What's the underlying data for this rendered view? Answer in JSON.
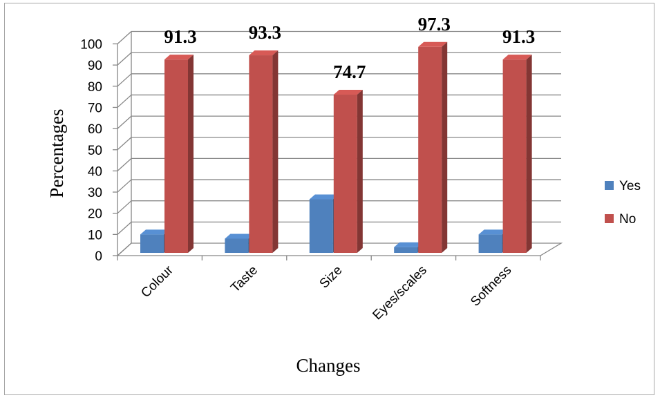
{
  "chart_data": {
    "type": "bar",
    "xlabel": "Changes",
    "ylabel": "Percentages",
    "ylim": [
      0,
      100
    ],
    "yticks": [
      "0",
      "10",
      "20",
      "30",
      "40",
      "50",
      "60",
      "70",
      "80",
      "90",
      "100"
    ],
    "categories": [
      "Colour",
      "Taste",
      "Size",
      "Eyes/scales",
      "Softness"
    ],
    "series": [
      {
        "name": "Yes",
        "values": [
          8.7,
          6.7,
          25.3,
          2.7,
          8.7
        ],
        "color": "#4f81bd"
      },
      {
        "name": "No",
        "values": [
          91.3,
          93.3,
          74.7,
          97.3,
          91.3
        ],
        "color": "#c0504d"
      }
    ],
    "data_labels": [
      "91.3",
      "93.3",
      "74.7",
      "97.3",
      "91.3"
    ],
    "legend": "right",
    "grid": true
  }
}
